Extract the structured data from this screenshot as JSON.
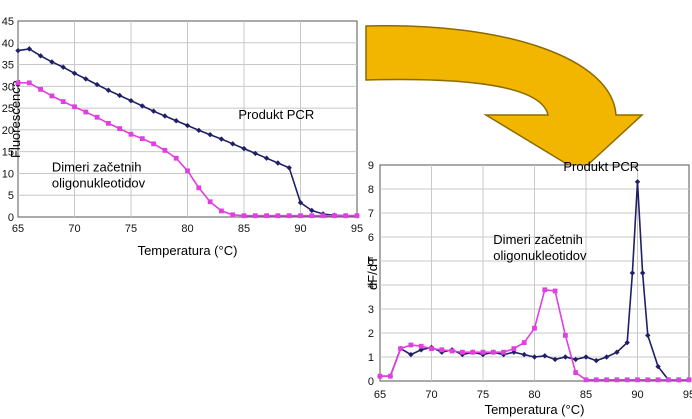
{
  "colors": {
    "arrow": "#F2B600",
    "arrow_stroke": "#8C6A00",
    "pcr_series": "#1F1F66",
    "dimer_series": "#E040E0",
    "grid": "#C8C8C8"
  },
  "chart_data": [
    {
      "type": "line",
      "xlabel": "Temperatura (°C)",
      "ylabel": "Fluorescenca",
      "xlim": [
        65,
        95
      ],
      "ylim": [
        0,
        45
      ],
      "xticks": [
        "65",
        "70",
        "75",
        "80",
        "85",
        "90",
        "95"
      ],
      "yticks": [
        "0",
        "5",
        "10",
        "15",
        "20",
        "25",
        "30",
        "35",
        "40",
        "45"
      ],
      "grid": true,
      "annotations": [
        {
          "lines": [
            "Produkt PCR"
          ],
          "x": 84.5,
          "y": 22.5
        },
        {
          "lines": [
            "Dimeri začetnih",
            "oligonukleotidov"
          ],
          "x": 68,
          "y": 10.5
        }
      ],
      "series": [
        {
          "marker": "diamond",
          "x": [
            65,
            66,
            67,
            68,
            69,
            70,
            71,
            72,
            73,
            74,
            75,
            76,
            77,
            78,
            79,
            80,
            81,
            82,
            83,
            84,
            85,
            86,
            87,
            88,
            89,
            90,
            91,
            92,
            93,
            94,
            95
          ],
          "y": [
            38.2,
            38.6,
            37.0,
            35.6,
            34.4,
            33.0,
            31.7,
            30.4,
            29.1,
            27.9,
            26.7,
            25.5,
            24.3,
            23.2,
            22.1,
            21.0,
            19.9,
            18.9,
            17.9,
            16.8,
            15.7,
            14.6,
            13.5,
            12.4,
            11.3,
            3.3,
            1.5,
            0.7,
            0.4,
            0.3,
            0.3
          ]
        },
        {
          "marker": "square",
          "x": [
            65,
            66,
            67,
            68,
            69,
            70,
            71,
            72,
            73,
            74,
            75,
            76,
            77,
            78,
            79,
            80,
            81,
            82,
            83,
            84,
            85,
            86,
            87,
            88,
            89,
            90,
            91,
            92,
            93,
            94,
            95
          ],
          "y": [
            30.8,
            30.8,
            29.3,
            27.8,
            26.5,
            25.3,
            24.1,
            22.9,
            21.5,
            20.3,
            19.0,
            18.0,
            16.8,
            15.3,
            13.5,
            10.6,
            6.7,
            3.5,
            1.4,
            0.5,
            0.3,
            0.3,
            0.3,
            0.3,
            0.3,
            0.3,
            0.3,
            0.3,
            0.3,
            0.3,
            0.3
          ]
        }
      ]
    },
    {
      "type": "line",
      "xlabel": "Temperatura (°C)",
      "ylabel": "dF/dT",
      "xlim": [
        65,
        95
      ],
      "ylim": [
        0,
        9
      ],
      "xticks": [
        "65",
        "70",
        "75",
        "80",
        "85",
        "90",
        "95"
      ],
      "yticks": [
        "0",
        "1",
        "2",
        "3",
        "4",
        "5",
        "6",
        "7",
        "8",
        "9"
      ],
      "grid": true,
      "annotations": [
        {
          "lines": [
            "Produkt PCR"
          ],
          "x": 82.8,
          "y": 8.75
        },
        {
          "lines": [
            "Dimeri začetnih",
            "oligonukleotidov"
          ],
          "x": 76,
          "y": 5.7
        }
      ],
      "series": [
        {
          "marker": "diamond",
          "x": [
            65,
            66,
            67,
            68,
            69,
            70,
            71,
            72,
            73,
            74,
            75,
            76,
            77,
            78,
            79,
            80,
            81,
            82,
            83,
            84,
            85,
            86,
            87,
            88,
            89,
            89.5,
            90,
            90.5,
            91,
            92,
            93,
            94,
            95
          ],
          "y": [
            0.2,
            0.2,
            1.35,
            1.1,
            1.3,
            1.4,
            1.2,
            1.3,
            1.1,
            1.2,
            1.1,
            1.2,
            1.1,
            1.2,
            1.1,
            1.0,
            1.05,
            0.9,
            1.0,
            0.9,
            1.0,
            0.85,
            1.0,
            1.2,
            1.6,
            4.5,
            8.3,
            4.5,
            1.9,
            0.6,
            0.05,
            0.05,
            0.05
          ]
        },
        {
          "marker": "square",
          "x": [
            65,
            66,
            67,
            68,
            69,
            70,
            71,
            72,
            73,
            74,
            75,
            76,
            77,
            78,
            79,
            80,
            81,
            82,
            83,
            84,
            85,
            86,
            87,
            88,
            89,
            90,
            91,
            92,
            93,
            94,
            95
          ],
          "y": [
            0.2,
            0.2,
            1.35,
            1.5,
            1.45,
            1.35,
            1.3,
            1.25,
            1.2,
            1.2,
            1.2,
            1.2,
            1.2,
            1.35,
            1.6,
            2.2,
            3.8,
            3.75,
            1.9,
            0.35,
            0.05,
            0.05,
            0.05,
            0.05,
            0.05,
            0.05,
            0.05,
            0.05,
            0.05,
            0.05,
            0.05
          ]
        }
      ]
    }
  ]
}
